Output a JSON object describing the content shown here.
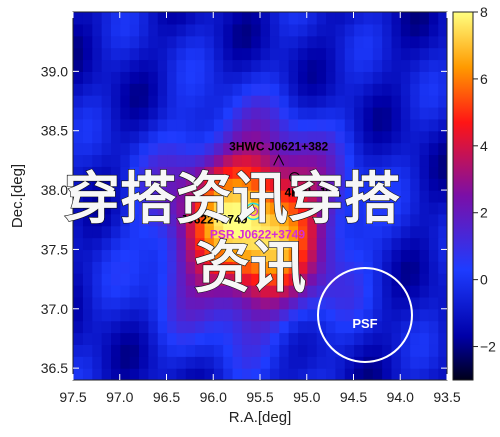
{
  "chart_data": {
    "type": "heatmap",
    "title": "",
    "xlabel": "R.A.[deg]",
    "ylabel": "Dec.[deg]",
    "xlim": [
      97.5,
      93.5
    ],
    "ylim": [
      36.4,
      39.5
    ],
    "x_ticks": [
      "97.5",
      "97.0",
      "96.5",
      "96.0",
      "95.5",
      "95.0",
      "94.5",
      "94.0",
      "93.5"
    ],
    "y_ticks": [
      "36.5",
      "37.0",
      "37.5",
      "38.0",
      "38.5",
      "39.0"
    ],
    "colorbar": {
      "range": [
        -3,
        8
      ],
      "ticks": [
        "8",
        "6",
        "4",
        "2",
        "0",
        "−2"
      ]
    },
    "peak": {
      "ra": 95.6,
      "dec": 37.7,
      "value": 8
    },
    "sources": [
      {
        "label": "3HWC J0621+382",
        "ra": 95.3,
        "dec": 38.25,
        "marker": "caret",
        "color": "#000000"
      },
      {
        "label": "4FGL J0...",
        "ra": 95.13,
        "dec": 38.08,
        "marker": "circle",
        "color": "#000000"
      },
      {
        "label": "J0622+3749",
        "ra": 95.72,
        "dec": 37.82,
        "marker": "none",
        "color": "#000000"
      },
      {
        "label": "PSR J0622+3749",
        "ra": 95.57,
        "dec": 37.82,
        "marker": "circle",
        "color": "#d62bd6"
      }
    ],
    "psf_label": "PSF",
    "watermark": [
      "穿搭资讯穿搭",
      "资讯"
    ]
  }
}
